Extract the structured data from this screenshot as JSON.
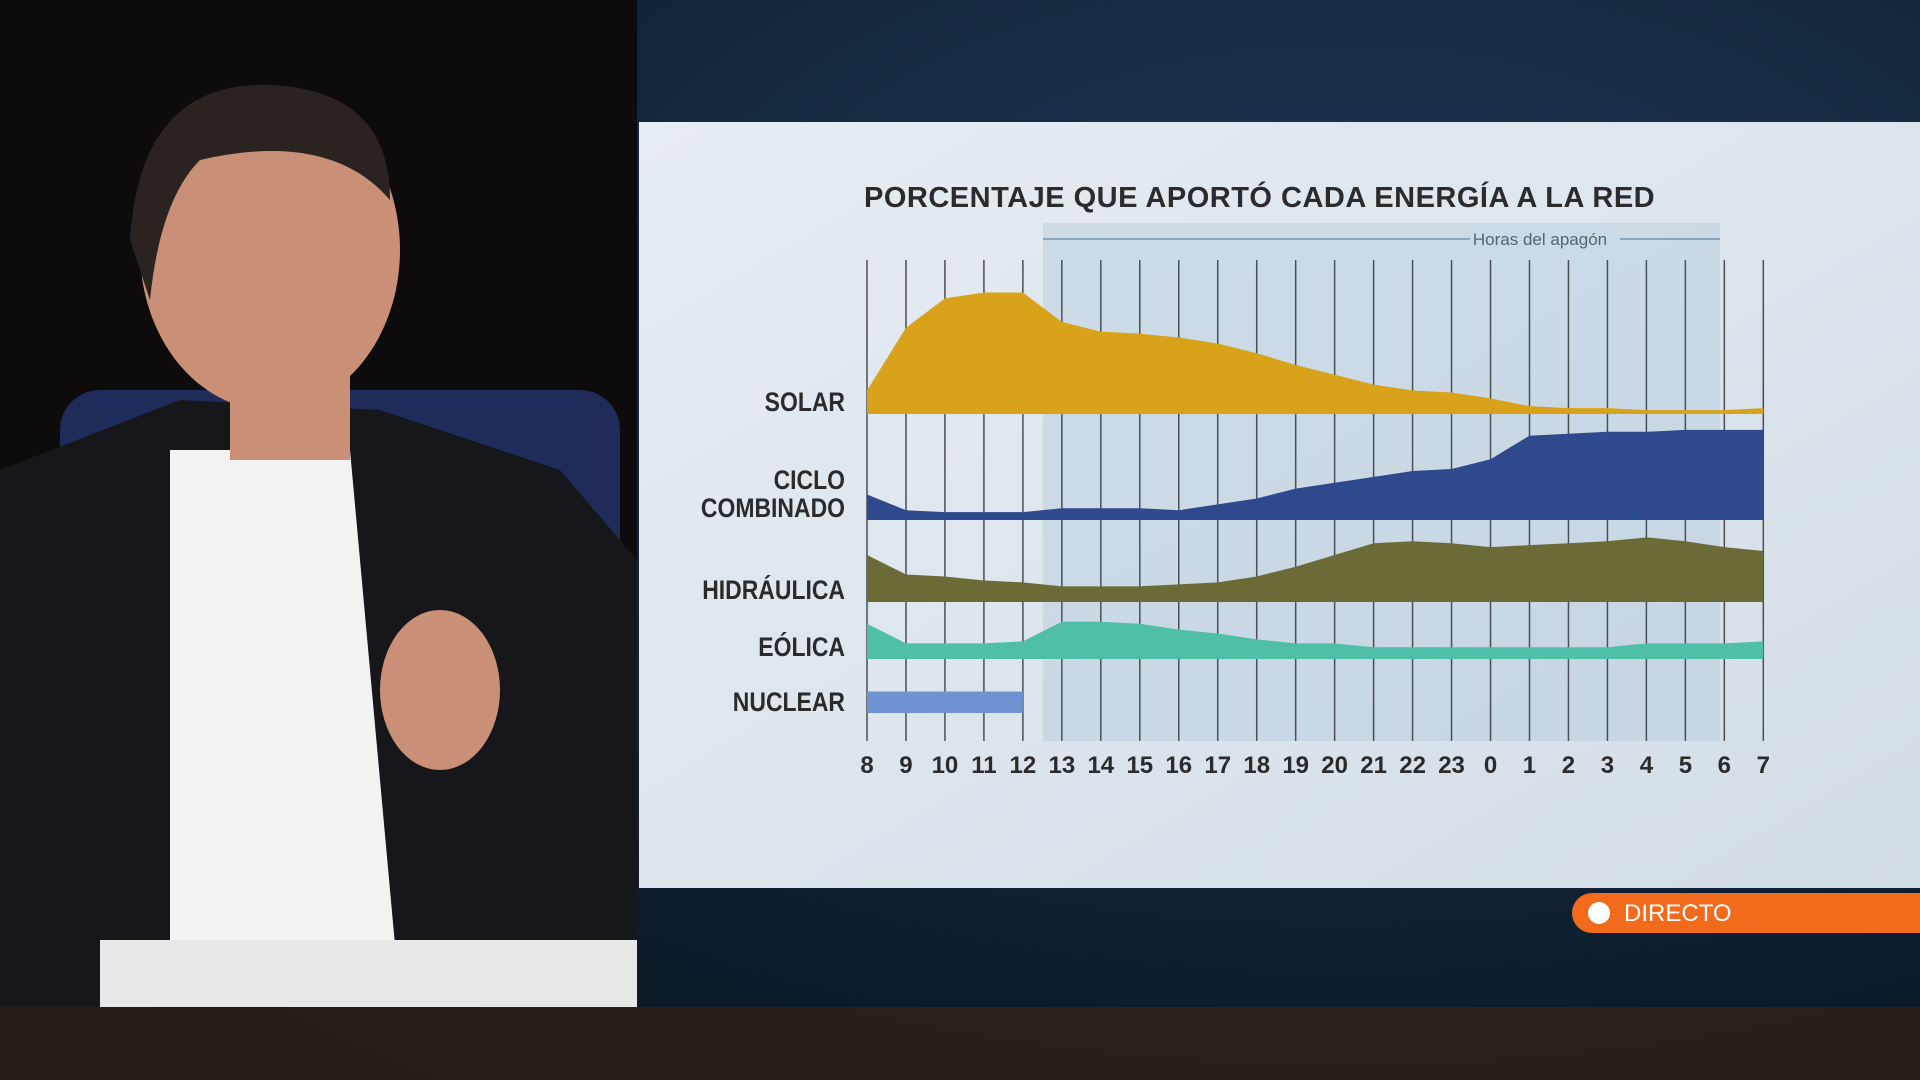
{
  "chart_data": {
    "type": "ridge-area",
    "title": "PORCENTAJE QUE APORTÓ CADA ENERGÍA A LA RED",
    "annotation": "Horas del apagón",
    "categories": [
      "8",
      "9",
      "10",
      "11",
      "12",
      "13",
      "14",
      "15",
      "16",
      "17",
      "18",
      "19",
      "20",
      "21",
      "22",
      "23",
      "0",
      "1",
      "2",
      "3",
      "4",
      "5",
      "6",
      "7"
    ],
    "series": [
      {
        "name": "SOLAR",
        "color": "#d9a21b",
        "values": [
          12,
          44,
          59,
          62,
          62,
          47,
          42,
          41,
          39,
          36,
          31,
          25,
          20,
          15,
          12,
          11,
          8,
          4,
          3,
          3,
          2,
          2,
          2,
          3
        ]
      },
      {
        "name": "CICLO COMBINADO",
        "color": "#2e4a8c",
        "values": [
          13,
          5,
          4,
          4,
          4,
          6,
          6,
          6,
          5,
          8,
          11,
          16,
          19,
          22,
          25,
          26,
          31,
          43,
          44,
          45,
          45,
          46,
          46,
          46
        ]
      },
      {
        "name": "HIDRÁULICA",
        "color": "#6b6b38",
        "values": [
          24,
          14,
          13,
          11,
          10,
          8,
          8,
          8,
          9,
          10,
          13,
          18,
          24,
          30,
          31,
          30,
          28,
          29,
          30,
          31,
          33,
          31,
          28,
          26
        ]
      },
      {
        "name": "EÓLICA",
        "color": "#4fbfa6",
        "values": [
          18,
          8,
          8,
          8,
          9,
          19,
          19,
          18,
          15,
          13,
          10,
          8,
          8,
          6,
          6,
          6,
          6,
          6,
          6,
          6,
          8,
          8,
          8,
          9
        ]
      },
      {
        "name": "NUCLEAR",
        "color": "#6f93d0",
        "values": [
          11,
          11,
          11,
          11,
          11,
          null,
          null,
          null,
          null,
          null,
          null,
          null,
          null,
          null,
          null,
          null,
          null,
          null,
          null,
          null,
          null,
          null,
          null,
          null
        ]
      }
    ],
    "grid": true
  },
  "badge": "DIRECTO"
}
